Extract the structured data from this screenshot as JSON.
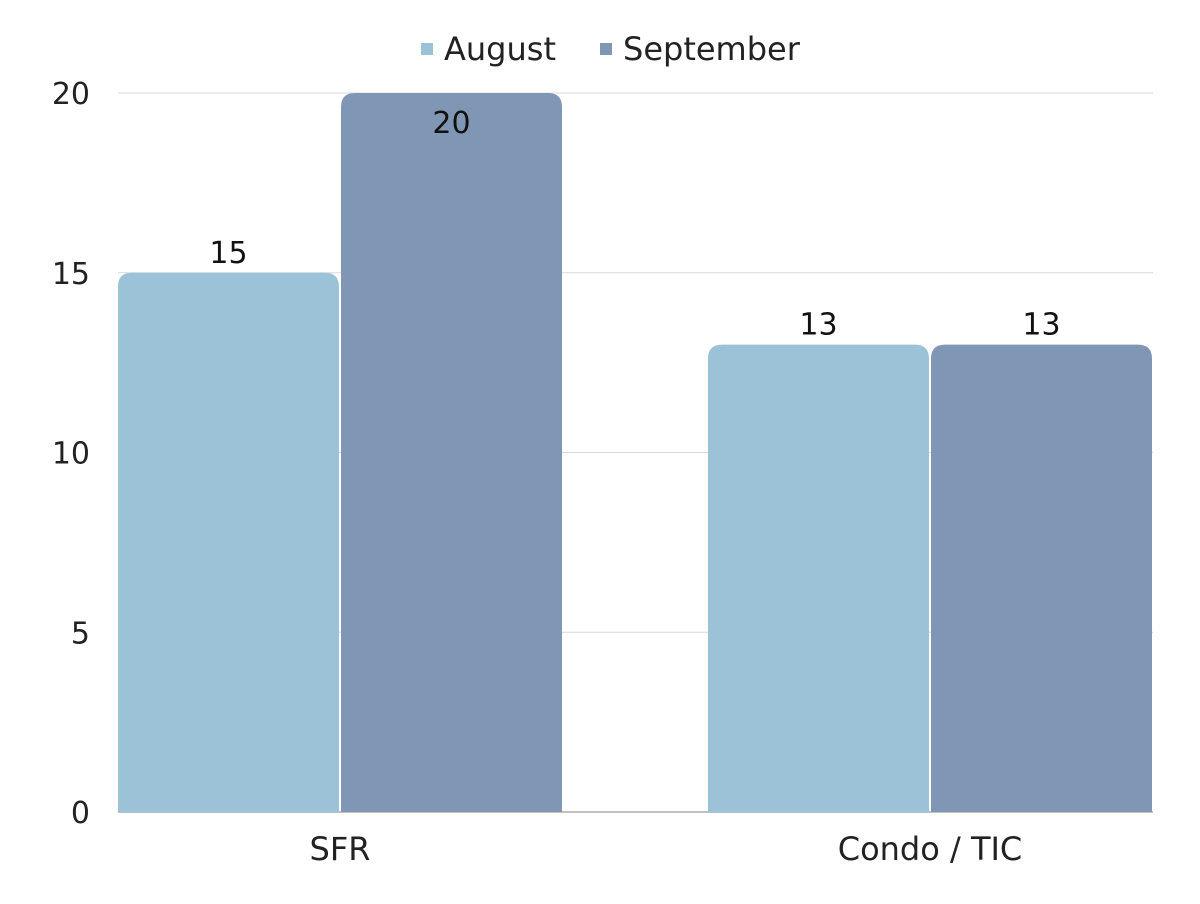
{
  "chart_data": {
    "type": "bar",
    "categories": [
      "SFR",
      "Condo / TIC"
    ],
    "series": [
      {
        "name": "August",
        "values": [
          15,
          13
        ],
        "color": "#9cc2d8"
      },
      {
        "name": "September",
        "values": [
          20,
          13
        ],
        "color": "#7f97b4"
      }
    ],
    "ylim": [
      0,
      20
    ],
    "yticks": [
      "0",
      "5",
      "10",
      "15",
      "20"
    ],
    "data_labels": true,
    "grid": true,
    "legend_position": "top-center",
    "title": "",
    "xlabel": "",
    "ylabel": ""
  }
}
